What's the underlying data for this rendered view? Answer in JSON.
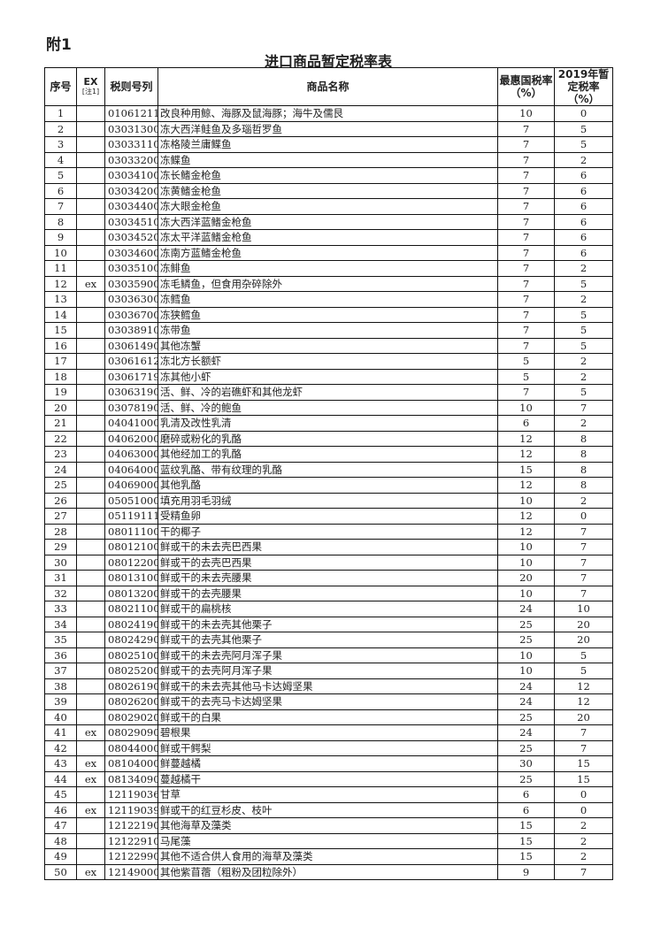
{
  "annex_label": "附1",
  "title": "进口商品暂定税率表",
  "headers": {
    "seq": "序号",
    "ex": "EX",
    "ex_note": "[注1]",
    "code": "税则号列",
    "name": "商品名称",
    "mfn": "最惠国税率（%）",
    "provisional": "2019年暂定税率（%）"
  },
  "rows": [
    [
      "1",
      "",
      "01061211",
      "改良种用鲸、海豚及鼠海豚；海牛及儒艮",
      "10",
      "0"
    ],
    [
      "2",
      "",
      "03031300",
      "冻大西洋鲑鱼及多瑙哲罗鱼",
      "7",
      "5"
    ],
    [
      "3",
      "",
      "03033110",
      "冻格陵兰庸鲽鱼",
      "7",
      "5"
    ],
    [
      "4",
      "",
      "03033200",
      "冻鲽鱼",
      "7",
      "2"
    ],
    [
      "5",
      "",
      "03034100",
      "冻长鳍金枪鱼",
      "7",
      "6"
    ],
    [
      "6",
      "",
      "03034200",
      "冻黄鳍金枪鱼",
      "7",
      "6"
    ],
    [
      "7",
      "",
      "03034400",
      "冻大眼金枪鱼",
      "7",
      "6"
    ],
    [
      "8",
      "",
      "03034510",
      "冻大西洋蓝鳍金枪鱼",
      "7",
      "6"
    ],
    [
      "9",
      "",
      "03034520",
      "冻太平洋蓝鳍金枪鱼",
      "7",
      "6"
    ],
    [
      "10",
      "",
      "03034600",
      "冻南方蓝鳍金枪鱼",
      "7",
      "6"
    ],
    [
      "11",
      "",
      "03035100",
      "冻鲱鱼",
      "7",
      "2"
    ],
    [
      "12",
      "ex",
      "03035900",
      "冻毛鳞鱼，但食用杂碎除外",
      "7",
      "5"
    ],
    [
      "13",
      "",
      "03036300",
      "冻鳕鱼",
      "7",
      "2"
    ],
    [
      "14",
      "",
      "03036700",
      "冻狭鳕鱼",
      "7",
      "5"
    ],
    [
      "15",
      "",
      "03038910",
      "冻带鱼",
      "7",
      "5"
    ],
    [
      "16",
      "",
      "03061490",
      "其他冻蟹",
      "7",
      "5"
    ],
    [
      "17",
      "",
      "03061612",
      "冻北方长额虾",
      "5",
      "2"
    ],
    [
      "18",
      "",
      "03061719",
      "冻其他小虾",
      "5",
      "2"
    ],
    [
      "19",
      "",
      "03063190",
      "活、鲜、冷的岩礁虾和其他龙虾",
      "7",
      "5"
    ],
    [
      "20",
      "",
      "03078190",
      "活、鲜、冷的鲍鱼",
      "10",
      "7"
    ],
    [
      "21",
      "",
      "04041000",
      "乳清及改性乳清",
      "6",
      "2"
    ],
    [
      "22",
      "",
      "04062000",
      "磨碎或粉化的乳酪",
      "12",
      "8"
    ],
    [
      "23",
      "",
      "04063000",
      "其他经加工的乳酪",
      "12",
      "8"
    ],
    [
      "24",
      "",
      "04064000",
      "蓝纹乳酪、带有纹理的乳酪",
      "15",
      "8"
    ],
    [
      "25",
      "",
      "04069000",
      "其他乳酪",
      "12",
      "8"
    ],
    [
      "26",
      "",
      "05051000",
      "填充用羽毛羽绒",
      "10",
      "2"
    ],
    [
      "27",
      "",
      "05119111",
      "受精鱼卵",
      "12",
      "0"
    ],
    [
      "28",
      "",
      "08011100",
      "干的椰子",
      "12",
      "7"
    ],
    [
      "29",
      "",
      "08012100",
      "鲜或干的未去壳巴西果",
      "10",
      "7"
    ],
    [
      "30",
      "",
      "08012200",
      "鲜或干的去壳巴西果",
      "10",
      "7"
    ],
    [
      "31",
      "",
      "08013100",
      "鲜或干的未去壳腰果",
      "20",
      "7"
    ],
    [
      "32",
      "",
      "08013200",
      "鲜或干的去壳腰果",
      "10",
      "7"
    ],
    [
      "33",
      "",
      "08021100",
      "鲜或干的扁桃核",
      "24",
      "10"
    ],
    [
      "34",
      "",
      "08024190",
      "鲜或干的未去壳其他栗子",
      "25",
      "20"
    ],
    [
      "35",
      "",
      "08024290",
      "鲜或干的去壳其他栗子",
      "25",
      "20"
    ],
    [
      "36",
      "",
      "08025100",
      "鲜或干的未去壳阿月浑子果",
      "10",
      "5"
    ],
    [
      "37",
      "",
      "08025200",
      "鲜或干的去壳阿月浑子果",
      "10",
      "5"
    ],
    [
      "38",
      "",
      "08026190",
      "鲜或干的未去壳其他马卡达姆坚果",
      "24",
      "12"
    ],
    [
      "39",
      "",
      "08026200",
      "鲜或干的去壳马卡达姆坚果",
      "24",
      "12"
    ],
    [
      "40",
      "",
      "08029020",
      "鲜或干的白果",
      "25",
      "20"
    ],
    [
      "41",
      "ex",
      "08029090",
      "碧根果",
      "24",
      "7"
    ],
    [
      "42",
      "",
      "08044000",
      "鲜或干鳄梨",
      "25",
      "7"
    ],
    [
      "43",
      "ex",
      "08104000",
      "鲜蔓越橘",
      "30",
      "15"
    ],
    [
      "44",
      "ex",
      "08134090",
      "蔓越橘干",
      "25",
      "15"
    ],
    [
      "45",
      "",
      "12119036",
      "甘草",
      "6",
      "0"
    ],
    [
      "46",
      "ex",
      "12119039",
      "鲜或干的红豆杉皮、枝叶",
      "6",
      "0"
    ],
    [
      "47",
      "",
      "12122190",
      "其他海草及藻类",
      "15",
      "2"
    ],
    [
      "48",
      "",
      "12122910",
      "马尾藻",
      "15",
      "2"
    ],
    [
      "49",
      "",
      "12122990",
      "其他不适合供人食用的海草及藻类",
      "15",
      "2"
    ],
    [
      "50",
      "ex",
      "12149000",
      "其他紫苜蓿（粗粉及团粒除外）",
      "9",
      "7"
    ]
  ]
}
